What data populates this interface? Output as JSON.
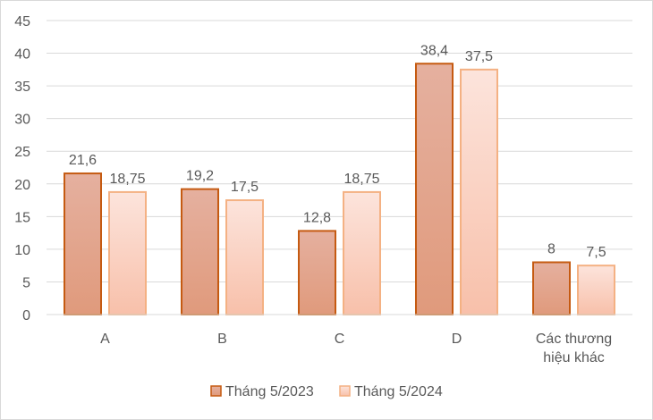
{
  "chart_data": {
    "type": "bar",
    "categories": [
      [
        "A"
      ],
      [
        "B"
      ],
      [
        "C"
      ],
      [
        "D"
      ],
      [
        "Các thương",
        "hiệu khác"
      ]
    ],
    "series": [
      {
        "name": "Tháng 5/2023",
        "values": [
          21.6,
          19.2,
          12.8,
          38.4,
          8
        ],
        "labels": [
          "21,6",
          "19,2",
          "12,8",
          "38,4",
          "8"
        ],
        "color_top": "#e5b09f",
        "color_bottom": "#e09a7c",
        "stroke": "#c55a11"
      },
      {
        "name": "Tháng 5/2024",
        "values": [
          18.75,
          17.5,
          18.75,
          37.5,
          7.5
        ],
        "labels": [
          "18,75",
          "17,5",
          "18,75",
          "37,5",
          "7,5"
        ],
        "color_top": "#fce4dc",
        "color_bottom": "#f8c0aa",
        "stroke": "#f4b183"
      }
    ],
    "yticks": [
      0,
      5,
      10,
      15,
      20,
      25,
      30,
      35,
      40,
      45
    ],
    "ylim": [
      0,
      45
    ],
    "grid": true,
    "legend_position": "bottom"
  }
}
